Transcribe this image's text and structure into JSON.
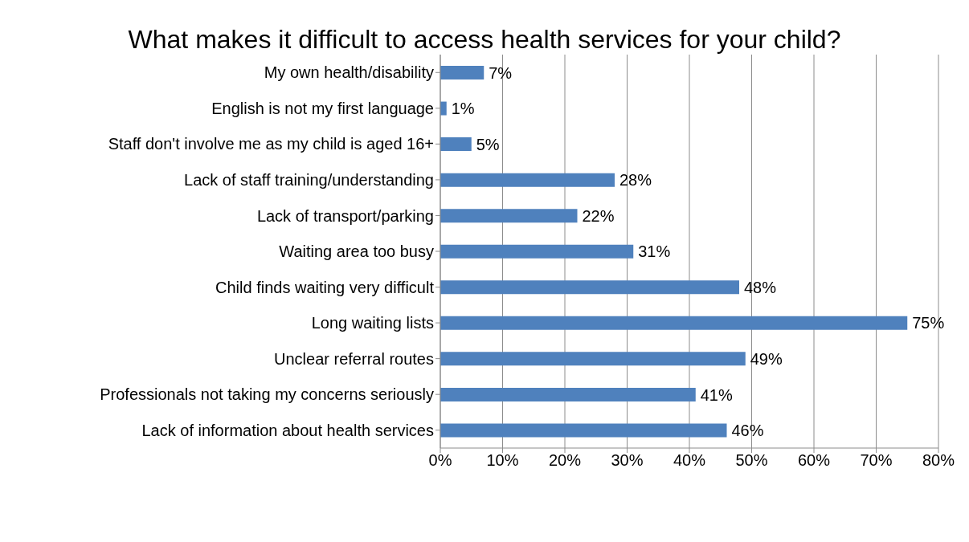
{
  "chart_data": {
    "type": "bar",
    "orientation": "horizontal",
    "title": "What makes it difficult to access health services for your child?",
    "categories": [
      "My own health/disability",
      "English is not my first language",
      "Staff don't involve me as my child is aged 16+",
      "Lack of staff training/understanding",
      "Lack of transport/parking",
      "Waiting area too busy",
      "Child finds waiting very difficult",
      "Long waiting lists",
      "Unclear referral routes",
      "Professionals not taking my concerns seriously",
      "Lack of information about health services"
    ],
    "values": [
      7,
      1,
      5,
      28,
      22,
      31,
      48,
      75,
      49,
      41,
      46
    ],
    "value_labels": [
      "7%",
      "1%",
      "5%",
      "28%",
      "22%",
      "31%",
      "48%",
      "75%",
      "49%",
      "41%",
      "46%"
    ],
    "color": "#4f81bd",
    "xlim": [
      0,
      80
    ],
    "xticks": [
      {
        "value": 0,
        "label": "0%"
      },
      {
        "value": 10,
        "label": "10%"
      },
      {
        "value": 20,
        "label": "20%"
      },
      {
        "value": 30,
        "label": "30%"
      },
      {
        "value": 40,
        "label": "40%"
      },
      {
        "value": 50,
        "label": "50%"
      },
      {
        "value": 60,
        "label": "60%"
      },
      {
        "value": 70,
        "label": "70%"
      },
      {
        "value": 80,
        "label": "80%"
      }
    ],
    "grid": "x"
  }
}
